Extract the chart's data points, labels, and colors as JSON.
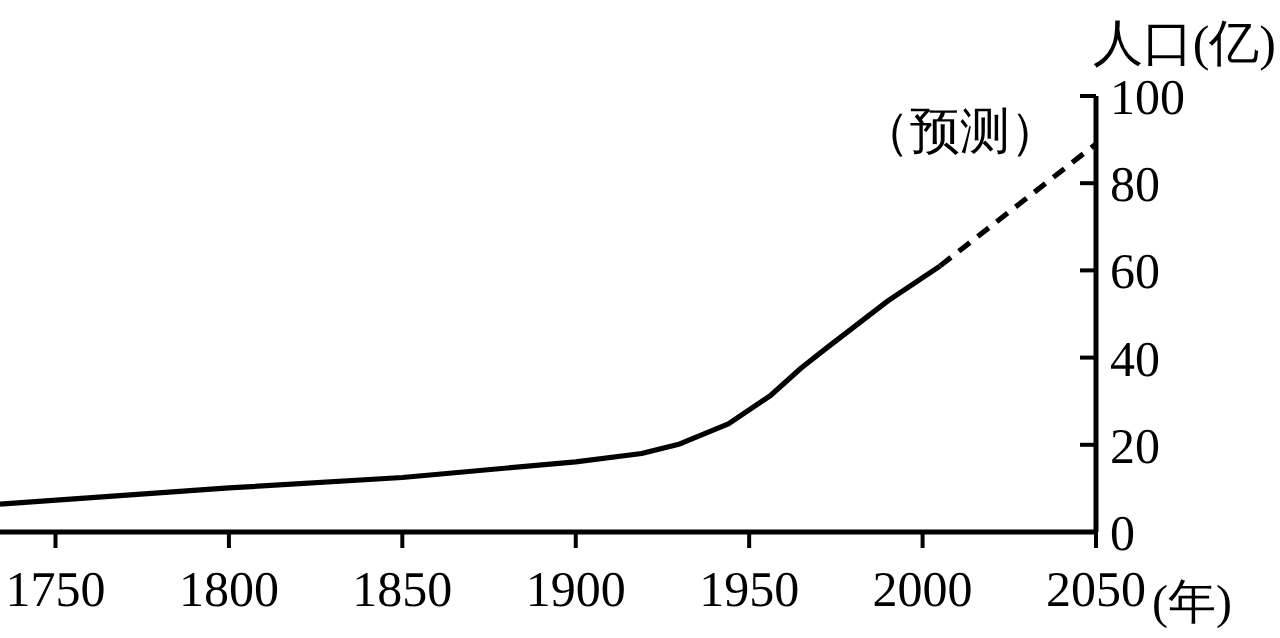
{
  "chart_data": {
    "type": "line",
    "xlabel": "(年)",
    "ylabel": "人口(亿)",
    "annotations": [
      "（预测）"
    ],
    "xlim": [
      1734,
      2050
    ],
    "xticks": [
      1750,
      1800,
      1850,
      1900,
      1950,
      2000,
      2050
    ],
    "ylim": [
      0,
      100
    ],
    "yticks": [
      0,
      20,
      40,
      60,
      80,
      100
    ],
    "grid": false,
    "marker": "none",
    "series": [
      {
        "color": "#000000",
        "line_style": "solid",
        "x": [
          1734,
          1800,
          1850,
          1900,
          1919,
          1930,
          1944,
          1956,
          1965,
          1972,
          1990,
          2005
        ],
        "values": [
          6.4,
          10.1,
          12.5,
          16.1,
          18,
          20.2,
          24.8,
          31.2,
          37.6,
          42,
          53,
          61
        ]
      },
      {
        "color": "#000000",
        "line_style": "dashed",
        "x": [
          2005,
          2050
        ],
        "values": [
          61,
          89
        ]
      }
    ]
  }
}
